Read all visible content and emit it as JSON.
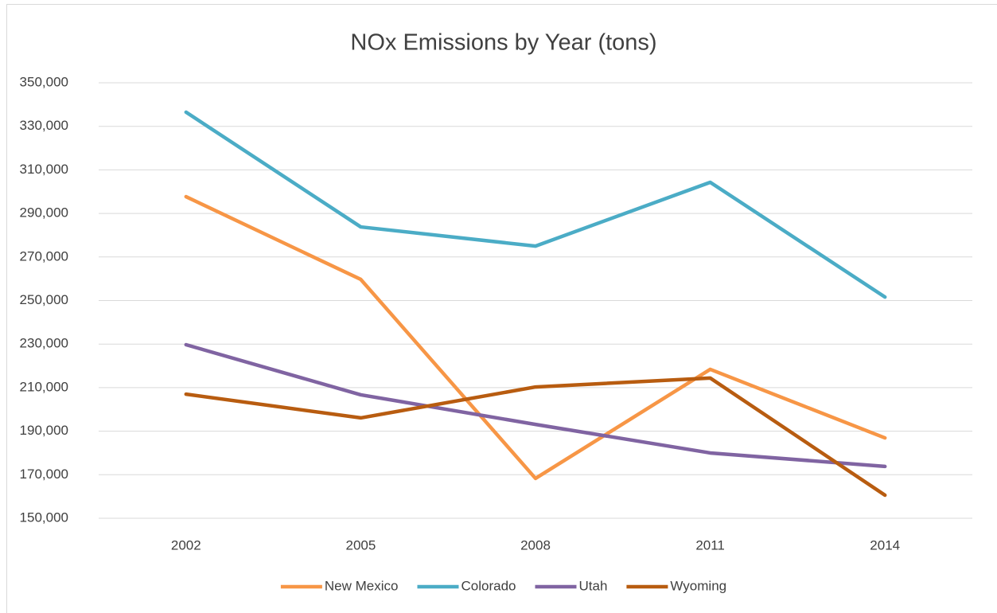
{
  "chart_data": {
    "type": "line",
    "title": "NOx Emissions by Year (tons)",
    "categories": [
      "2002",
      "2005",
      "2008",
      "2011",
      "2014"
    ],
    "series": [
      {
        "name": "New Mexico",
        "color": "#f79646",
        "values": [
          297700,
          259700,
          168300,
          218400,
          186900
        ]
      },
      {
        "name": "Colorado",
        "color": "#4bacc6",
        "values": [
          336500,
          283800,
          275000,
          304300,
          251600
        ]
      },
      {
        "name": "Utah",
        "color": "#8064a2",
        "values": [
          229700,
          206700,
          193100,
          180000,
          173800
        ]
      },
      {
        "name": "Wyoming",
        "color": "#b85c10",
        "values": [
          207000,
          196100,
          210300,
          214400,
          160600
        ]
      }
    ],
    "ylim": [
      150000,
      350000
    ],
    "yticks": [
      {
        "value": 150000,
        "label": "150,000"
      },
      {
        "value": 170000,
        "label": "170,000"
      },
      {
        "value": 190000,
        "label": "190,000"
      },
      {
        "value": 210000,
        "label": "210,000"
      },
      {
        "value": 230000,
        "label": "230,000"
      },
      {
        "value": 250000,
        "label": "250,000"
      },
      {
        "value": 270000,
        "label": "270,000"
      },
      {
        "value": 290000,
        "label": "290,000"
      },
      {
        "value": 310000,
        "label": "310,000"
      },
      {
        "value": 330000,
        "label": "330,000"
      },
      {
        "value": 350000,
        "label": "350,000"
      }
    ],
    "grid": true,
    "legend": "bottom"
  }
}
